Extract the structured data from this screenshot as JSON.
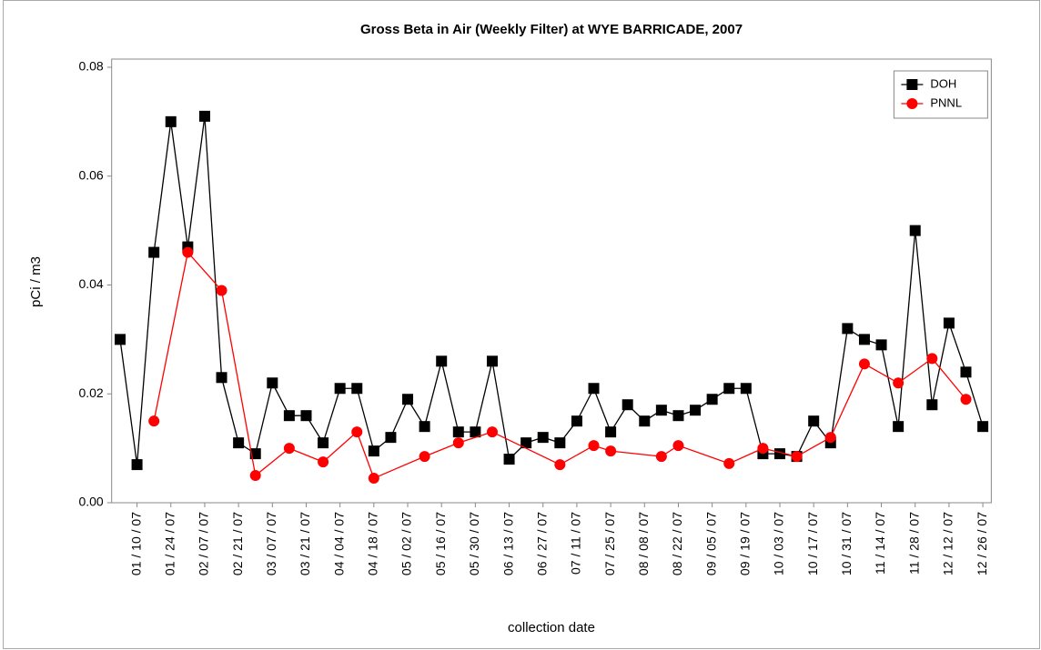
{
  "chart_data": {
    "type": "line",
    "title": "Gross Beta in Air (Weekly Filter) at WYE BARRICADE, 2007",
    "x_label": "collection date",
    "y_label": "pCi / m3",
    "categories": [
      null,
      "01 / 10 / 07",
      null,
      "01 / 24 / 07",
      null,
      "02 / 07 / 07",
      null,
      "02 / 21 / 07",
      null,
      "03 / 07 / 07",
      null,
      "03 / 21 / 07",
      null,
      "04 / 04 / 07",
      null,
      "04 / 18 / 07",
      null,
      "05 / 02 / 07",
      null,
      "05 / 16 / 07",
      null,
      "05 / 30 / 07",
      null,
      "06 / 13 / 07",
      null,
      "06 / 27 / 07",
      null,
      "07 / 11 / 07",
      null,
      "07 / 25 / 07",
      null,
      "08 / 08 / 07",
      null,
      "08 / 22 / 07",
      null,
      "09 / 05 / 07",
      null,
      "09 / 19 / 07",
      null,
      "10 / 03 / 07",
      null,
      "10 / 17 / 07",
      null,
      "10 / 31 / 07",
      null,
      "11 / 14 / 07",
      null,
      "11 / 28 / 07",
      null,
      "12 / 12 / 07",
      null,
      "12 / 26 / 07"
    ],
    "series": [
      {
        "name": "DOH",
        "color": "#000000",
        "marker": "square",
        "values": [
          0.03,
          0.007,
          0.046,
          0.07,
          0.047,
          0.071,
          0.023,
          0.011,
          0.009,
          0.022,
          0.016,
          0.016,
          0.011,
          0.021,
          0.021,
          0.0095,
          0.012,
          0.019,
          0.014,
          0.026,
          0.013,
          0.013,
          0.026,
          0.008,
          0.011,
          0.012,
          0.011,
          0.015,
          0.021,
          0.013,
          0.018,
          0.015,
          0.017,
          0.016,
          0.017,
          0.019,
          0.021,
          0.021,
          0.009,
          0.009,
          0.0085,
          0.015,
          0.011,
          0.032,
          0.03,
          0.029,
          0.014,
          0.05,
          0.018,
          0.033,
          0.024,
          0.014
        ]
      },
      {
        "name": "PNNL",
        "color": "#ff0000",
        "marker": "circle",
        "values": [
          null,
          null,
          0.015,
          null,
          0.046,
          null,
          0.039,
          null,
          0.005,
          null,
          0.01,
          null,
          0.0075,
          null,
          0.013,
          0.0045,
          null,
          null,
          0.0085,
          null,
          0.011,
          null,
          0.013,
          null,
          null,
          null,
          0.007,
          null,
          0.0105,
          0.0095,
          null,
          null,
          0.0085,
          0.0105,
          null,
          null,
          0.0072,
          null,
          0.01,
          null,
          0.0085,
          null,
          0.012,
          null,
          0.0255,
          null,
          0.022,
          null,
          0.0265,
          null,
          0.019,
          null
        ]
      }
    ],
    "connect_gaps": true,
    "ylim": [
      0,
      0.0815
    ],
    "yticks": [
      {
        "value": 0,
        "label": "0.00"
      },
      {
        "value": 0.02,
        "label": "0.02"
      },
      {
        "value": 0.04,
        "label": "0.04"
      },
      {
        "value": 0.06,
        "label": "0.06"
      },
      {
        "value": 0.08,
        "label": "0.08"
      }
    ],
    "legend": "top-right"
  }
}
